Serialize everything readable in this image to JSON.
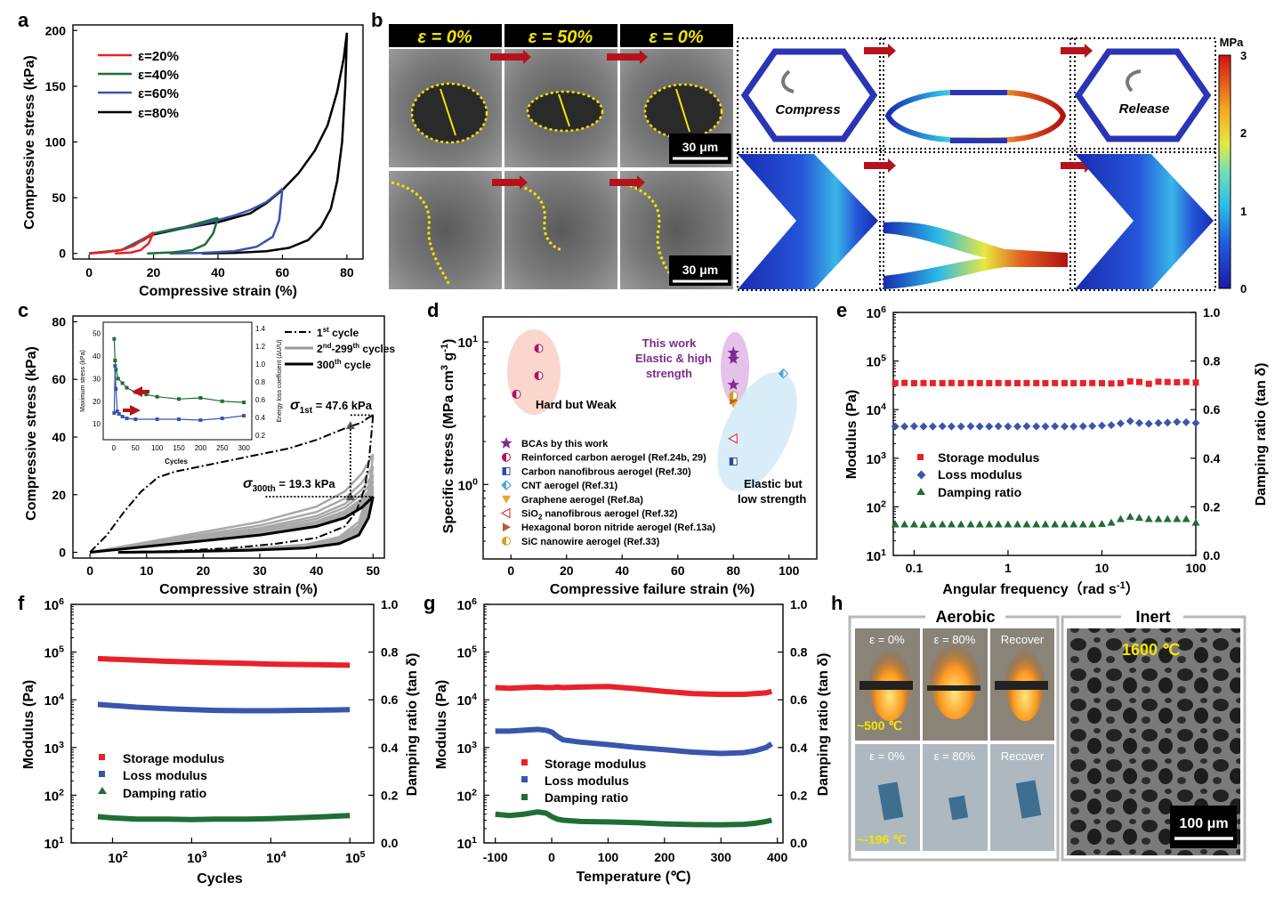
{
  "panels": {
    "a": "a",
    "b": "b",
    "c": "c",
    "d": "d",
    "e": "e",
    "f": "f",
    "g": "g",
    "h": "h"
  },
  "colors": {
    "red": "#e8212b",
    "green": "#1f6e35",
    "blue": "#3a55ad",
    "black": "#000000",
    "gray": "#9a9a9a",
    "purple": "#7b2d8e",
    "yellow": "#f5e400",
    "darkred": "#b5121b"
  },
  "chart_data": [
    {
      "id": "a",
      "type": "line",
      "xlabel": "Compressive strain (%)",
      "ylabel": "Compressive stress (kPa)",
      "xlim": [
        -5,
        85
      ],
      "ylim": [
        -5,
        205
      ],
      "xticks": [
        0,
        20,
        40,
        60,
        80
      ],
      "yticks": [
        0,
        50,
        100,
        150,
        200
      ],
      "legend": [
        "ε=20%",
        "ε=40%",
        "ε=60%",
        "ε=80%"
      ],
      "series": [
        {
          "name": "ε=20%",
          "color": "#e8212b",
          "load": [
            [
              0,
              0
            ],
            [
              5,
              1
            ],
            [
              10,
              3
            ],
            [
              14,
              7
            ],
            [
              17,
              13
            ],
            [
              20,
              19
            ]
          ],
          "unload": [
            [
              20,
              19
            ],
            [
              18.5,
              9
            ],
            [
              16,
              3
            ],
            [
              13,
              0.8
            ],
            [
              8,
              0
            ]
          ]
        },
        {
          "name": "ε=40%",
          "color": "#1f6e35",
          "load": [
            [
              0,
              0
            ],
            [
              10,
              3
            ],
            [
              17,
              12
            ],
            [
              20,
              18
            ],
            [
              25,
              21
            ],
            [
              30,
              24
            ],
            [
              35,
              28
            ],
            [
              40,
              32
            ]
          ],
          "unload": [
            [
              40,
              32
            ],
            [
              38.5,
              18
            ],
            [
              36,
              8
            ],
            [
              32,
              3
            ],
            [
              26,
              1
            ],
            [
              18,
              0
            ]
          ]
        },
        {
          "name": "ε=60%",
          "color": "#3a55ad",
          "load": [
            [
              0,
              0
            ],
            [
              10,
              3
            ],
            [
              20,
              18
            ],
            [
              30,
              23
            ],
            [
              40,
              30
            ],
            [
              45,
              34
            ],
            [
              50,
              39
            ],
            [
              55,
              46
            ],
            [
              58,
              53
            ],
            [
              60,
              58
            ]
          ],
          "unload": [
            [
              60,
              58
            ],
            [
              59,
              30
            ],
            [
              57,
              15
            ],
            [
              52,
              6
            ],
            [
              45,
              2
            ],
            [
              35,
              0.5
            ],
            [
              25,
              0
            ]
          ]
        },
        {
          "name": "ε=80%",
          "color": "#000000",
          "load": [
            [
              0,
              0
            ],
            [
              10,
              3
            ],
            [
              20,
              17
            ],
            [
              30,
              23
            ],
            [
              40,
              28
            ],
            [
              50,
              36
            ],
            [
              55,
              45
            ],
            [
              60,
              57
            ],
            [
              65,
              72
            ],
            [
              70,
              92
            ],
            [
              74,
              115
            ],
            [
              77,
              145
            ],
            [
              79,
              175
            ],
            [
              80,
              198
            ]
          ],
          "unload": [
            [
              80,
              198
            ],
            [
              79.5,
              150
            ],
            [
              78.5,
              100
            ],
            [
              77,
              65
            ],
            [
              75,
              40
            ],
            [
              72,
              24
            ],
            [
              68,
              12
            ],
            [
              62,
              5
            ],
            [
              55,
              2
            ],
            [
              45,
              0.5
            ],
            [
              35,
              0
            ]
          ]
        }
      ]
    },
    {
      "id": "c",
      "type": "line",
      "xlabel": "Compressive strain (%)",
      "ylabel": "Compressive stress (kPa)",
      "xlim": [
        -3,
        52
      ],
      "ylim": [
        -2,
        82
      ],
      "xticks": [
        0,
        10,
        20,
        30,
        40,
        50
      ],
      "yticks": [
        0,
        20,
        40,
        60,
        80
      ],
      "legend": [
        {
          "base": "1",
          "sup": "st",
          "rest": " cycle"
        },
        {
          "base": "2",
          "sup": "nd",
          "rest": "-299",
          "sup2": "th",
          "rest2": " cycles"
        },
        {
          "base": "300",
          "sup": "th",
          "rest": " cycle"
        }
      ],
      "annot1": {
        "pre": "σ",
        "sub": "1st",
        "post": " = 47.6 kPa"
      },
      "annot2": {
        "pre": "σ",
        "sub": "300th",
        "post": " = 19.3 kPa"
      },
      "first": [
        [
          0,
          0
        ],
        [
          3,
          6
        ],
        [
          6,
          14
        ],
        [
          9,
          21
        ],
        [
          12,
          26
        ],
        [
          15,
          28
        ],
        [
          20,
          30
        ],
        [
          25,
          32
        ],
        [
          30,
          34
        ],
        [
          35,
          36
        ],
        [
          40,
          39
        ],
        [
          45,
          43
        ],
        [
          48,
          45
        ],
        [
          49,
          46.5
        ],
        [
          50,
          47.6
        ]
      ],
      "first_unload": [
        [
          50,
          47.6
        ],
        [
          49.3,
          32
        ],
        [
          48.5,
          22
        ],
        [
          47,
          14
        ],
        [
          45,
          9
        ],
        [
          40,
          5
        ],
        [
          33,
          3
        ],
        [
          25,
          1.5
        ],
        [
          15,
          0.5
        ],
        [
          5,
          0
        ]
      ],
      "last": [
        [
          0,
          0
        ],
        [
          10,
          2
        ],
        [
          20,
          4
        ],
        [
          30,
          6
        ],
        [
          40,
          9
        ],
        [
          45,
          12
        ],
        [
          48,
          15.5
        ],
        [
          50,
          19.3
        ]
      ],
      "last_unload": [
        [
          50,
          19.3
        ],
        [
          49.2,
          12
        ],
        [
          47.5,
          6
        ],
        [
          44,
          3
        ],
        [
          38,
          1.5
        ],
        [
          28,
          0.7
        ],
        [
          15,
          0.2
        ],
        [
          5,
          0
        ]
      ],
      "inset": {
        "xlabel": "Cycles",
        "ylabel": "Maximum stress (kPa)",
        "ylabel2": "Energy loss coefficient (ΔU/U)",
        "xticks": [
          0,
          50,
          100,
          150,
          200,
          250,
          300
        ],
        "yticks": [
          10,
          20,
          30,
          40,
          50
        ],
        "yticks2": [
          0.2,
          0.4,
          0.6,
          0.8,
          1.0,
          1.2,
          1.4
        ],
        "stress": [
          [
            1,
            47.6
          ],
          [
            3,
            38
          ],
          [
            5,
            34
          ],
          [
            10,
            30
          ],
          [
            20,
            28
          ],
          [
            30,
            26
          ],
          [
            50,
            24
          ],
          [
            75,
            23
          ],
          [
            100,
            22
          ],
          [
            150,
            21
          ],
          [
            200,
            21.5
          ],
          [
            250,
            20
          ],
          [
            300,
            19.5
          ]
        ],
        "loss": [
          [
            1,
            0.45
          ],
          [
            3,
            0.98
          ],
          [
            5,
            0.72
          ],
          [
            8,
            0.47
          ],
          [
            12,
            0.44
          ],
          [
            20,
            0.41
          ],
          [
            30,
            0.39
          ],
          [
            50,
            0.38
          ],
          [
            100,
            0.38
          ],
          [
            150,
            0.38
          ],
          [
            200,
            0.37
          ],
          [
            250,
            0.39
          ],
          [
            300,
            0.42
          ]
        ]
      }
    },
    {
      "id": "d",
      "type": "scatter",
      "xlabel": "Compressive failure strain (%)",
      "ylabel": "Specific stress (MPa cm³ g⁻¹)",
      "ylabel_parts": {
        "pre": "Specific stress (MPa cm",
        "sup1": "3",
        "mid": " g",
        "sup2": "-1",
        "post": ")"
      },
      "xlim": [
        -10,
        110
      ],
      "ylim_log": [
        0.3,
        15
      ],
      "xticks": [
        0,
        20,
        40,
        60,
        80,
        100
      ],
      "groups": {
        "hard": "Hard but Weak",
        "elastic1": "Elastic but",
        "elastic2": "low strength",
        "thiswork1": "This work",
        "thiswork2": "Elastic & high",
        "thiswork3": "strength"
      },
      "legend": [
        "BCAs by this work",
        "Reinforced carbon aerogel (Ref.24b, 29)",
        "Carbon nanofibrous aerogel (Ref.30)",
        "CNT aerogel (Ref.31)",
        "Graphene aerogel (Ref.8a)",
        "SiO2 nanofibrous aerogel (Ref.32)",
        "Hexagonal boron nitride aerogel (Ref.13a)",
        "SiC nanowire aerogel (Ref.33)"
      ],
      "points": [
        {
          "s": "BCAs by this work",
          "x": 80,
          "y": 8.4
        },
        {
          "s": "BCAs by this work",
          "x": 80,
          "y": 7.6
        },
        {
          "s": "BCAs by this work",
          "x": 80,
          "y": 5.0
        },
        {
          "s": "Reinforced carbon aerogel (Ref.24b, 29)",
          "x": 10,
          "y": 9.0
        },
        {
          "s": "Reinforced carbon aerogel (Ref.24b, 29)",
          "x": 10,
          "y": 5.8
        },
        {
          "s": "Reinforced carbon aerogel (Ref.24b, 29)",
          "x": 2,
          "y": 4.3
        },
        {
          "s": "Carbon nanofibrous aerogel (Ref.30)",
          "x": 80,
          "y": 1.45
        },
        {
          "s": "CNT aerogel (Ref.31)",
          "x": 98,
          "y": 6.0
        },
        {
          "s": "Graphene aerogel (Ref.8a)",
          "x": 80,
          "y": 3.7
        },
        {
          "s": "SiO2 nanofibrous aerogel (Ref.32)",
          "x": 80,
          "y": 2.1
        },
        {
          "s": "Hexagonal boron nitride aerogel (Ref.13a)",
          "x": 80,
          "y": 3.9
        },
        {
          "s": "SiC nanowire aerogel (Ref.33)",
          "x": 80,
          "y": 4.2
        }
      ]
    },
    {
      "id": "e",
      "type": "scatter",
      "xlabel": "Angular frequency（rad s⁻¹）",
      "xlabel_parts": {
        "pre": "Angular frequency（rad s",
        "sup": "-1",
        "post": "）"
      },
      "ylabel": "Modulus (Pa)",
      "ylabel2": "Damping ratio (tan δ)",
      "xlog": [
        0.06,
        100
      ],
      "ylog": [
        10,
        1000000
      ],
      "y2lim": [
        0,
        1
      ],
      "xticks": [
        0.1,
        1,
        10,
        100
      ],
      "xticklabels": [
        "0.1",
        "1",
        "10",
        "100"
      ],
      "yticks2": [
        0.0,
        0.2,
        0.4,
        0.6,
        0.8,
        1.0
      ],
      "legend": [
        "Storage modulus",
        "Loss modulus",
        "Damping ratio"
      ],
      "freqs": [
        0.063,
        0.079,
        0.1,
        0.126,
        0.158,
        0.2,
        0.25,
        0.316,
        0.4,
        0.5,
        0.63,
        0.79,
        1,
        1.26,
        1.58,
        2,
        2.5,
        3.16,
        4,
        5,
        6.3,
        7.9,
        10,
        12.6,
        15.8,
        20,
        25,
        31.6,
        40,
        50,
        63,
        79,
        100
      ],
      "storage": [
        35000,
        35500,
        35000,
        35200,
        35100,
        35000,
        35300,
        35000,
        35200,
        35100,
        35000,
        35200,
        35100,
        35000,
        35200,
        35100,
        35000,
        35200,
        35100,
        35000,
        35100,
        35200,
        35000,
        34500,
        35000,
        38000,
        37000,
        34000,
        37500,
        37000,
        36500,
        37000,
        36000
      ],
      "loss": [
        4500,
        4500,
        4550,
        4500,
        4500,
        4550,
        4500,
        4500,
        4550,
        4500,
        4500,
        4550,
        4500,
        4500,
        4550,
        4500,
        4500,
        4550,
        4500,
        4500,
        4550,
        4600,
        4700,
        4800,
        5200,
        5800,
        5300,
        5100,
        5300,
        5400,
        5600,
        5500,
        5300
      ],
      "damping": [
        0.128,
        0.128,
        0.128,
        0.127,
        0.128,
        0.128,
        0.128,
        0.128,
        0.128,
        0.128,
        0.128,
        0.128,
        0.128,
        0.128,
        0.128,
        0.128,
        0.128,
        0.128,
        0.128,
        0.128,
        0.128,
        0.128,
        0.13,
        0.135,
        0.15,
        0.16,
        0.155,
        0.15,
        0.15,
        0.15,
        0.15,
        0.15,
        0.135
      ]
    },
    {
      "id": "f",
      "type": "line",
      "xlabel": "Cycles",
      "ylabel": "Modulus (Pa)",
      "ylabel2": "Damping ratio (tan δ)",
      "xlog": [
        30,
        200000
      ],
      "ylog": [
        10,
        1000000
      ],
      "y2lim": [
        0,
        1
      ],
      "xticks": [
        100,
        1000,
        10000,
        100000
      ],
      "yticks2": [
        0.0,
        0.2,
        0.4,
        0.6,
        0.8,
        1.0
      ],
      "legend": [
        "Storage modulus",
        "Loss modulus",
        "Damping ratio"
      ],
      "x": [
        65,
        100,
        200,
        500,
        1000,
        2000,
        5000,
        10000,
        20000,
        50000,
        100000
      ],
      "storage": [
        73000,
        71000,
        68000,
        64000,
        62000,
        60000,
        58000,
        56000,
        55000,
        54000,
        53000
      ],
      "loss": [
        8000,
        7600,
        7000,
        6500,
        6200,
        6000,
        5900,
        5900,
        6000,
        6100,
        6200
      ],
      "damping": [
        0.11,
        0.105,
        0.1,
        0.1,
        0.098,
        0.1,
        0.1,
        0.102,
        0.105,
        0.11,
        0.115
      ]
    },
    {
      "id": "g",
      "type": "line",
      "xlabel": "Temperature (℃)",
      "ylabel": "Modulus (Pa)",
      "ylabel2": "Damping ratio (tan δ)",
      "xlim": [
        -120,
        410
      ],
      "ylog": [
        10,
        1000000
      ],
      "y2lim": [
        0,
        1
      ],
      "xticks": [
        -100,
        0,
        100,
        200,
        300,
        400
      ],
      "yticks2": [
        0.0,
        0.2,
        0.4,
        0.6,
        0.8,
        1.0
      ],
      "legend": [
        "Storage modulus",
        "Loss modulus",
        "Damping ratio"
      ],
      "x": [
        -100,
        -75,
        -50,
        -25,
        -10,
        0,
        10,
        20,
        50,
        100,
        150,
        200,
        250,
        300,
        340,
        360,
        380,
        390
      ],
      "storage": [
        18000,
        17500,
        18000,
        18500,
        18000,
        18000,
        18500,
        18000,
        18500,
        19000,
        17000,
        15000,
        13500,
        13000,
        13000,
        13500,
        14000,
        15000
      ],
      "loss": [
        2200,
        2200,
        2300,
        2400,
        2300,
        2100,
        1700,
        1450,
        1300,
        1150,
        1000,
        900,
        800,
        750,
        780,
        850,
        1000,
        1200
      ],
      "damping": [
        0.12,
        0.115,
        0.12,
        0.13,
        0.125,
        0.11,
        0.1,
        0.095,
        0.09,
        0.088,
        0.085,
        0.08,
        0.077,
        0.076,
        0.078,
        0.082,
        0.09,
        0.095
      ]
    }
  ],
  "panel_b": {
    "labels": [
      "ε = 0%",
      "ε = 50%",
      "ε = 0%"
    ],
    "scale": "30 μm",
    "scale2": "30 μm",
    "compress": "Compress",
    "release": "Release",
    "unit": "MPa",
    "cticks": [
      "0",
      "1",
      "2",
      "3"
    ]
  },
  "panel_h": {
    "aerobic": "Aerobic",
    "inert": "Inert",
    "labels": [
      "ε = 0%",
      "ε = 80%",
      "Recover",
      "ε = 0%",
      "ε = 80%",
      "Recover"
    ],
    "hot": "~500 ℃",
    "cold": "~-196 ℃",
    "temp": "1600 ℃",
    "scale": "100 μm"
  }
}
